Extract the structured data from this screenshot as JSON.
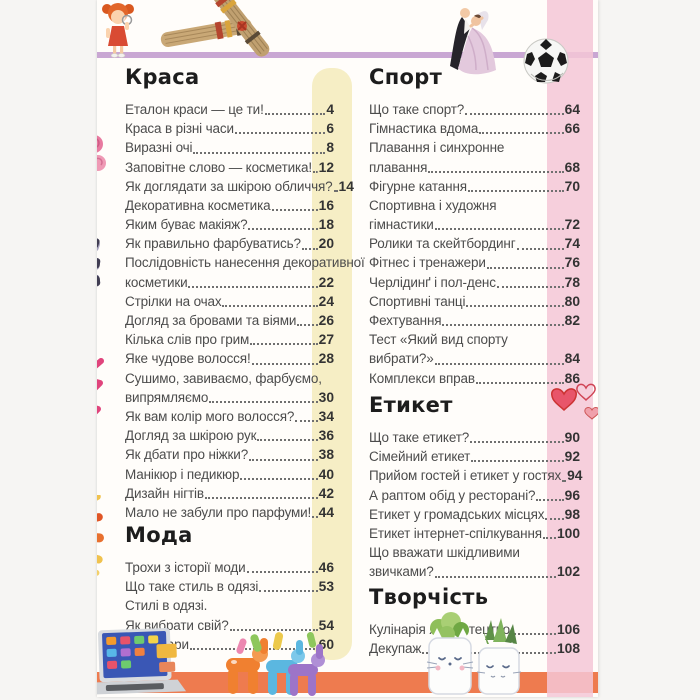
{
  "page": {
    "kind": "book-table-of-contents",
    "language": "uk",
    "colors": {
      "accent_orange": "#ee7b4f",
      "stripe_pink": "#f4c7d6",
      "stripe_cream": "#f6eec5",
      "line_purple": "#c9a7d3",
      "body_text": "#4c4c4c",
      "page_background": "#fffdfa"
    },
    "columns": [
      {
        "name": "left",
        "sections": [
          {
            "key": "krasa",
            "title": "Краса",
            "entries": [
              {
                "t": "Еталон краси — це ти!",
                "p": "4"
              },
              {
                "t": "Краса в різні часи",
                "p": "6"
              },
              {
                "t": "Виразні очі",
                "p": "8"
              },
              {
                "t": "Заповітне слово — косметика!",
                "p": "12"
              },
              {
                "t": "Як доглядати за шкірою обличчя?",
                "p": "14"
              },
              {
                "t": "Декоративна косметика",
                "p": "16"
              },
              {
                "t": "Яким буває макіяж?",
                "p": "18"
              },
              {
                "t": "Як правильно фарбуватись?",
                "p": "20"
              },
              {
                "t": "Послідовність нанесення декоративної",
                "p": ""
              },
              {
                "t": "косметики",
                "p": "22"
              },
              {
                "t": "Стрілки на очах",
                "p": "24"
              },
              {
                "t": "Догляд за бровами та віями",
                "p": "26"
              },
              {
                "t": "Кілька слів про грим",
                "p": "27"
              },
              {
                "t": "Яке чудове волосся!",
                "p": "28"
              },
              {
                "t": "Сушимо, завиваємо, фарбуємо,",
                "p": ""
              },
              {
                "t": "випрямляємо",
                "p": "30"
              },
              {
                "t": "Як вам колір мого волосся?",
                "p": "34"
              },
              {
                "t": "Догляд за шкірою рук",
                "p": "36"
              },
              {
                "t": "Як дбати про ніжки?",
                "p": "38"
              },
              {
                "t": "Манікюр і педикюр",
                "p": "40"
              },
              {
                "t": "Дизайн нігтів",
                "p": "42"
              },
              {
                "t": "Мало не забули про парфуми!",
                "p": "44"
              }
            ]
          },
          {
            "key": "moda",
            "title": "Мода",
            "entries": [
              {
                "t": "Трохи з історії моди",
                "p": "46"
              },
              {
                "t": "Що таке стиль в одязі",
                "p": "53"
              },
              {
                "t": "Стилі в одязі.",
                "p": ""
              },
              {
                "t": "Як вибрати свій?",
                "p": "54"
              },
              {
                "t": "Аксесуари",
                "p": "60"
              }
            ]
          }
        ]
      },
      {
        "name": "right",
        "sections": [
          {
            "key": "sport",
            "title": "Спорт",
            "entries": [
              {
                "t": "Що таке спорт?",
                "p": "64"
              },
              {
                "t": "Гімнастика вдома",
                "p": "66"
              },
              {
                "t": "Плавання і синхронне",
                "p": ""
              },
              {
                "t": "плавання",
                "p": "68"
              },
              {
                "t": "Фігурне катання",
                "p": "70"
              },
              {
                "t": "Спортивна і художня",
                "p": ""
              },
              {
                "t": "гімнастики",
                "p": "72"
              },
              {
                "t": "Ролики та скейтбординг",
                "p": "74"
              },
              {
                "t": "Фітнес і тренажери",
                "p": "76"
              },
              {
                "t": "Черлідинґ і пол-денс",
                "p": "78"
              },
              {
                "t": "Спортивні танці",
                "p": "80"
              },
              {
                "t": "Фехтування",
                "p": "82"
              },
              {
                "t": "Тест «Який вид спорту",
                "p": ""
              },
              {
                "t": "вибрати?»",
                "p": "84"
              },
              {
                "t": "Комплекси вправ",
                "p": "86"
              }
            ]
          },
          {
            "key": "etyket",
            "title": "Етикет",
            "entries": [
              {
                "t": "Що таке етикет?",
                "p": "90"
              },
              {
                "t": "Сімейний етикет",
                "p": "92"
              },
              {
                "t": "Прийом гостей і етикет у гостях",
                "p": "94"
              },
              {
                "t": "А раптом обід у ресторані?",
                "p": "96"
              },
              {
                "t": "Етикет у громадських місцях",
                "p": "98"
              },
              {
                "t": "Етикет інтернет-спілкування",
                "p": "100"
              },
              {
                "t": "Що вважати шкідливими",
                "p": ""
              },
              {
                "t": "звичками?",
                "p": "102"
              }
            ]
          },
          {
            "key": "tvorchist",
            "title": "Творчість",
            "entries": [
              {
                "t": "Кулінарія як мистецтво",
                "p": "106"
              },
              {
                "t": "Декупаж",
                "p": "108"
              }
            ]
          }
        ]
      }
    ],
    "illustrations": [
      "girl-character-art",
      "straw-doll-art",
      "dancing-couple-art",
      "soccer-ball-art",
      "roses-art",
      "eyeshadow-palette-art",
      "lipstick-stroke-art",
      "paint-strokes-art",
      "hearts-doodle-art",
      "laptop-art",
      "balloon-figures-art",
      "cat-plant-pots-art"
    ]
  }
}
